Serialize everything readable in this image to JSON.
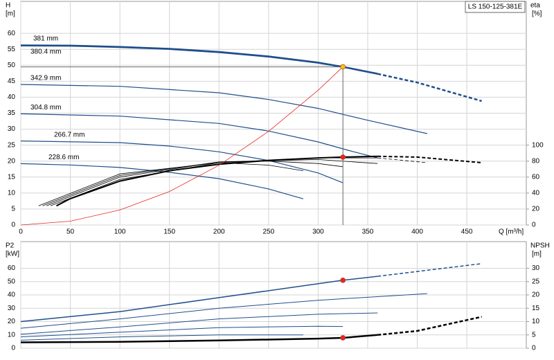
{
  "chart_data": [
    {
      "type": "line",
      "title": "LS 150-125-381E",
      "ylabel": "H",
      "ylabel_unit": "[m]",
      "y2label": "eta",
      "y2label_unit": "[%]",
      "xlabel": "Q [m³/h]",
      "xlim": [
        0,
        510
      ],
      "xticks": [
        0,
        50,
        100,
        150,
        200,
        250,
        300,
        350,
        400,
        450
      ],
      "ylim": [
        0,
        70
      ],
      "yticks": [
        0,
        5,
        10,
        15,
        20,
        25,
        30,
        35,
        40,
        45,
        50,
        55,
        60
      ],
      "y2lim": [
        0,
        280
      ],
      "y2ticks": [
        0,
        20,
        40,
        60,
        80,
        100
      ],
      "grid": true,
      "series": [
        {
          "name": "381 mm",
          "color": "#1f4e8c",
          "width": 1.2,
          "x": [
            0,
            50,
            100,
            150,
            200,
            250,
            300,
            325,
            360
          ],
          "values": [
            56.4,
            56.3,
            55.9,
            55.3,
            54.3,
            52.9,
            51.0,
            49.6,
            47.5
          ]
        },
        {
          "name": "380.4 mm",
          "color": "#1f4e8c",
          "width": 2.5,
          "dashed_from": 360,
          "x": [
            0,
            50,
            100,
            150,
            200,
            250,
            300,
            325,
            360,
            400,
            465
          ],
          "values": [
            56.2,
            56.1,
            55.7,
            55.1,
            54.1,
            52.7,
            50.8,
            49.5,
            47.3,
            44.6,
            38.8
          ]
        },
        {
          "name": "342.9 mm",
          "color": "#1f4e8c",
          "width": 1.2,
          "x": [
            0,
            100,
            200,
            250,
            300,
            350,
            410
          ],
          "values": [
            44.0,
            43.4,
            41.4,
            39.3,
            36.5,
            32.8,
            28.6
          ]
        },
        {
          "name": "304.8 mm",
          "color": "#1f4e8c",
          "width": 1.2,
          "x": [
            0,
            100,
            200,
            250,
            300,
            330,
            360
          ],
          "values": [
            34.8,
            34.1,
            31.8,
            29.4,
            26.0,
            23.4,
            21.0
          ]
        },
        {
          "name": "266.7 mm",
          "color": "#1f4e8c",
          "width": 1.2,
          "x": [
            0,
            100,
            150,
            200,
            250,
            300,
            325
          ],
          "values": [
            26.3,
            25.8,
            24.7,
            22.9,
            20.2,
            16.3,
            13.2
          ]
        },
        {
          "name": "228.6 mm",
          "color": "#1f4e8c",
          "width": 1.2,
          "x": [
            0,
            50,
            100,
            150,
            200,
            250,
            285
          ],
          "values": [
            19.2,
            18.8,
            18.0,
            16.5,
            14.5,
            11.3,
            8.2
          ]
        },
        {
          "color": "#000000",
          "width": 2,
          "axis": "y2",
          "dashed_from": 360,
          "x": [
            36,
            50,
            100,
            150,
            200,
            250,
            300,
            325,
            360,
            400,
            465
          ],
          "values": [
            24,
            33,
            55,
            68,
            76,
            81,
            84,
            85,
            86,
            85,
            78
          ]
        },
        {
          "color": "#000000",
          "width": 0.8,
          "axis": "y2",
          "dashed_from": 360,
          "x": [
            30,
            100,
            200,
            300,
            360,
            410
          ],
          "values": [
            24,
            57,
            78,
            84,
            84,
            78
          ]
        },
        {
          "color": "#000000",
          "width": 0.8,
          "axis": "y2",
          "x": [
            26,
            100,
            200,
            300,
            360
          ],
          "values": [
            24,
            60,
            79,
            82,
            77
          ]
        },
        {
          "color": "#000000",
          "width": 0.8,
          "axis": "y2",
          "x": [
            22,
            100,
            200,
            250,
            300,
            325
          ],
          "values": [
            24,
            62,
            79,
            80,
            77,
            73
          ]
        },
        {
          "color": "#000000",
          "width": 0.8,
          "axis": "y2",
          "x": [
            18,
            100,
            200,
            250,
            285
          ],
          "values": [
            24,
            64,
            78,
            75,
            68
          ]
        },
        {
          "color": "#e8261d",
          "width": 0.8,
          "x": [
            0,
            50,
            100,
            150,
            200,
            250,
            300,
            325
          ],
          "values": [
            0,
            1.2,
            4.7,
            10.5,
            18.7,
            29.3,
            42.2,
            49.5
          ]
        },
        {
          "marker": "#f5c400",
          "guides": true,
          "x": [
            325
          ],
          "values": [
            49.5
          ]
        },
        {
          "marker": "#e8261d",
          "axis": "y2",
          "x": [
            325
          ],
          "values": [
            85
          ]
        }
      ]
    },
    {
      "type": "line",
      "ylabel": "P2",
      "ylabel_unit": "[kW]",
      "y2label": "NPSH",
      "y2label_unit": "[m]",
      "xlim": [
        0,
        510
      ],
      "ylim": [
        0,
        80
      ],
      "yticks": [
        0,
        10,
        20,
        30,
        40,
        50,
        60
      ],
      "y2lim": [
        0,
        40
      ],
      "y2ticks": [
        0,
        5,
        10,
        15,
        20,
        25,
        30
      ],
      "grid": true,
      "series": [
        {
          "color": "#1f4e8c",
          "width": 1.5,
          "dashed_from": 360,
          "x": [
            0,
            100,
            200,
            325,
            360,
            465
          ],
          "values": [
            20,
            27.5,
            38,
            51,
            54,
            63.5
          ]
        },
        {
          "color": "#1f4e8c",
          "width": 1,
          "x": [
            0,
            100,
            200,
            300,
            410
          ],
          "values": [
            15,
            22,
            30,
            36,
            41
          ]
        },
        {
          "color": "#1f4e8c",
          "width": 1,
          "x": [
            0,
            100,
            200,
            300,
            360
          ],
          "values": [
            10.5,
            16,
            22,
            25.5,
            26.5
          ]
        },
        {
          "color": "#1f4e8c",
          "width": 1,
          "x": [
            0,
            100,
            200,
            300,
            325
          ],
          "values": [
            8.5,
            12,
            15.5,
            16.5,
            16.3
          ]
        },
        {
          "color": "#1f4e8c",
          "width": 1,
          "x": [
            0,
            100,
            200,
            285
          ],
          "values": [
            6,
            8.5,
            10,
            10
          ]
        },
        {
          "color": "#000000",
          "width": 2.5,
          "axis": "y2",
          "dashed_from": 360,
          "x": [
            0,
            100,
            200,
            300,
            325,
            360,
            400,
            465
          ],
          "values": [
            2.2,
            2.4,
            2.9,
            3.6,
            3.9,
            5,
            6.5,
            11.8
          ]
        },
        {
          "marker": "#e8261d",
          "x": [
            325
          ],
          "values": [
            51
          ]
        },
        {
          "marker": "#e8261d",
          "axis": "y2",
          "x": [
            325
          ],
          "values": [
            3.9
          ]
        }
      ]
    }
  ]
}
